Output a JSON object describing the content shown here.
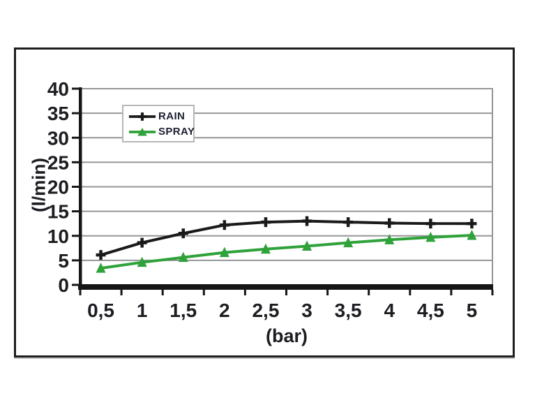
{
  "chart_data": {
    "type": "line",
    "x": [
      0.5,
      1,
      1.5,
      2,
      2.5,
      3,
      3.5,
      4,
      4.5,
      5
    ],
    "x_tick_labels": [
      "0,5",
      "1",
      "1,5",
      "2",
      "2,5",
      "3",
      "3,5",
      "4",
      "4,5",
      "5"
    ],
    "xlabel": "(bar)",
    "ylabel": "(l/min)",
    "ylim": [
      0,
      40
    ],
    "y_ticks": [
      0,
      5,
      10,
      15,
      20,
      25,
      30,
      35,
      40
    ],
    "grid": true,
    "legend_position": "top-left-inside",
    "series": [
      {
        "name": "RAIN",
        "color": "#1a1a1a",
        "marker": "plus",
        "values": [
          6.1,
          8.6,
          10.5,
          12.2,
          12.8,
          13.0,
          12.8,
          12.6,
          12.5,
          12.5
        ]
      },
      {
        "name": "SPRAY",
        "color": "#2fa23a",
        "marker": "triangle",
        "values": [
          3.4,
          4.6,
          5.6,
          6.6,
          7.3,
          7.9,
          8.6,
          9.2,
          9.7,
          10.1
        ]
      }
    ],
    "gridline_color": "#969696",
    "axis_color": "#161616",
    "tick_label_color": "#1d1d22"
  }
}
